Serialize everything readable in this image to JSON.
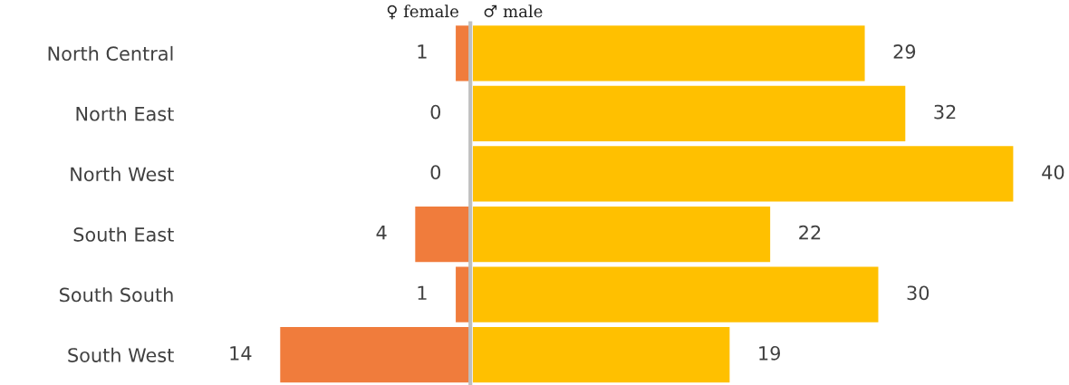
{
  "chart_data": [
    {
      "type": "bar",
      "orientation": "horizontal",
      "data_labels": true,
      "categories": [
        "North Central",
        "North East",
        "North West",
        "South East",
        "South South",
        "South West"
      ],
      "series": [
        {
          "name": "♀ female",
          "color": "#f07c3c",
          "values": [
            1,
            0,
            0,
            4,
            1,
            14
          ]
        }
      ],
      "xlim": [
        14,
        0
      ],
      "tick_labels": "y",
      "grid": false
    },
    {
      "type": "bar",
      "orientation": "horizontal",
      "data_labels": true,
      "categories": [
        null,
        null,
        null,
        null,
        null,
        null
      ],
      "series": [
        {
          "name": "♂ male",
          "color": "#ffc000",
          "values": [
            29,
            32,
            40,
            22,
            30,
            19
          ]
        }
      ],
      "xlim": [
        0,
        40
      ],
      "tick_labels": false,
      "grid": false
    }
  ]
}
